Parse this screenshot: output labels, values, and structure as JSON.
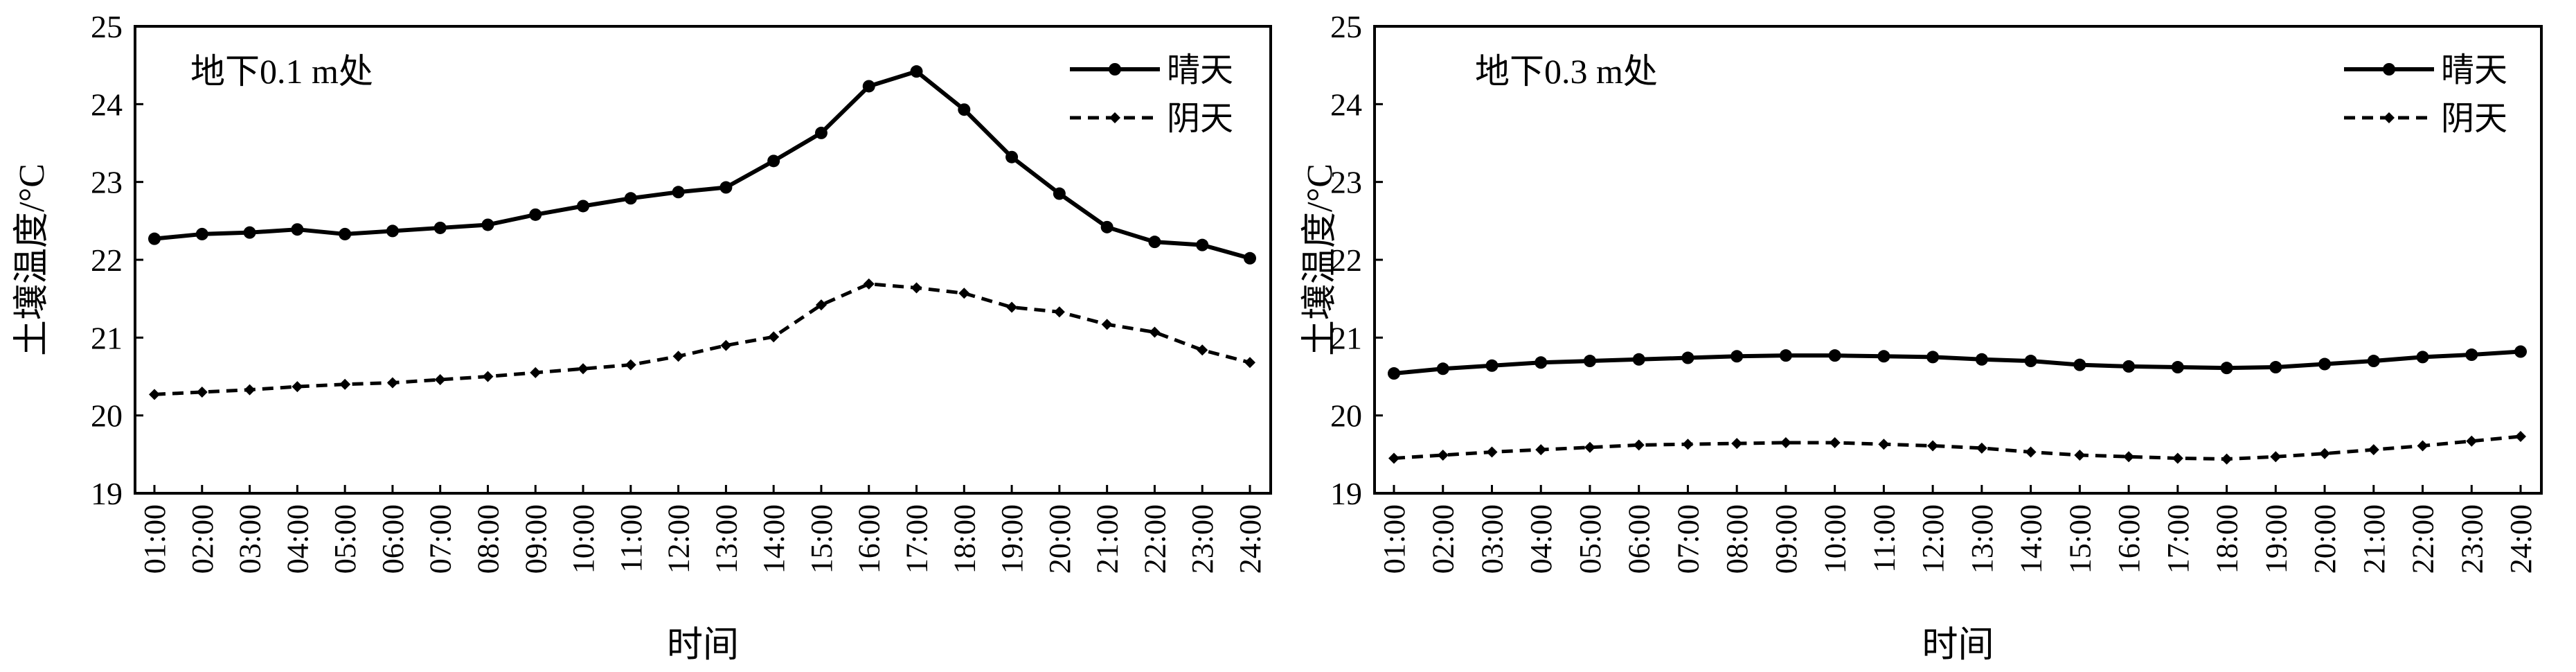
{
  "chart_data": [
    {
      "type": "line",
      "annotation": "地下0.1 m处",
      "title": "",
      "xlabel": "时间",
      "ylabel": "土壤温度/°C",
      "ylim": [
        19,
        25
      ],
      "yticks": [
        19,
        20,
        21,
        22,
        23,
        24,
        25
      ],
      "grid": false,
      "legend_position": "top-right",
      "categories": [
        "01:00",
        "02:00",
        "03:00",
        "04:00",
        "05:00",
        "06:00",
        "07:00",
        "08:00",
        "09:00",
        "10:00",
        "11:00",
        "12:00",
        "13:00",
        "14:00",
        "15:00",
        "16:00",
        "17:00",
        "18:00",
        "19:00",
        "20:00",
        "21:00",
        "22:00",
        "23:00",
        "24:00"
      ],
      "series": [
        {
          "name": "晴天",
          "style": "solid",
          "marker": "circle",
          "color": "#000000",
          "values": [
            22.27,
            22.33,
            22.35,
            22.39,
            22.33,
            22.37,
            22.41,
            22.45,
            22.58,
            22.69,
            22.79,
            22.87,
            22.93,
            23.27,
            23.63,
            24.23,
            24.42,
            23.93,
            23.32,
            22.85,
            22.42,
            22.23,
            22.19,
            22.02
          ]
        },
        {
          "name": "阴天",
          "style": "dashed",
          "marker": "diamond",
          "color": "#000000",
          "values": [
            20.27,
            20.3,
            20.33,
            20.37,
            20.4,
            20.42,
            20.46,
            20.5,
            20.55,
            20.6,
            20.65,
            20.76,
            20.9,
            21.01,
            21.42,
            21.69,
            21.64,
            21.57,
            21.39,
            21.33,
            21.17,
            21.07,
            20.84,
            20.68
          ]
        }
      ]
    },
    {
      "type": "line",
      "annotation": "地下0.3 m处",
      "title": "",
      "xlabel": "时间",
      "ylabel": "土壤温度/°C",
      "ylim": [
        19,
        25
      ],
      "yticks": [
        19,
        20,
        21,
        22,
        23,
        24,
        25
      ],
      "grid": false,
      "legend_position": "top-right",
      "categories": [
        "01:00",
        "02:00",
        "03:00",
        "04:00",
        "05:00",
        "06:00",
        "07:00",
        "08:00",
        "09:00",
        "10:00",
        "11:00",
        "12:00",
        "13:00",
        "14:00",
        "15:00",
        "16:00",
        "17:00",
        "18:00",
        "19:00",
        "20:00",
        "21:00",
        "22:00",
        "23:00",
        "24:00"
      ],
      "series": [
        {
          "name": "晴天",
          "style": "solid",
          "marker": "circle",
          "color": "#000000",
          "values": [
            20.54,
            20.6,
            20.64,
            20.68,
            20.7,
            20.72,
            20.74,
            20.76,
            20.77,
            20.77,
            20.76,
            20.75,
            20.72,
            20.7,
            20.65,
            20.63,
            20.62,
            20.61,
            20.62,
            20.66,
            20.7,
            20.75,
            20.78,
            20.82
          ]
        },
        {
          "name": "阴天",
          "style": "dashed",
          "marker": "diamond",
          "color": "#000000",
          "values": [
            19.45,
            19.49,
            19.53,
            19.56,
            19.59,
            19.62,
            19.63,
            19.64,
            19.65,
            19.65,
            19.63,
            19.61,
            19.58,
            19.53,
            19.49,
            19.47,
            19.45,
            19.44,
            19.47,
            19.51,
            19.56,
            19.61,
            19.67,
            19.73
          ]
        }
      ]
    }
  ]
}
